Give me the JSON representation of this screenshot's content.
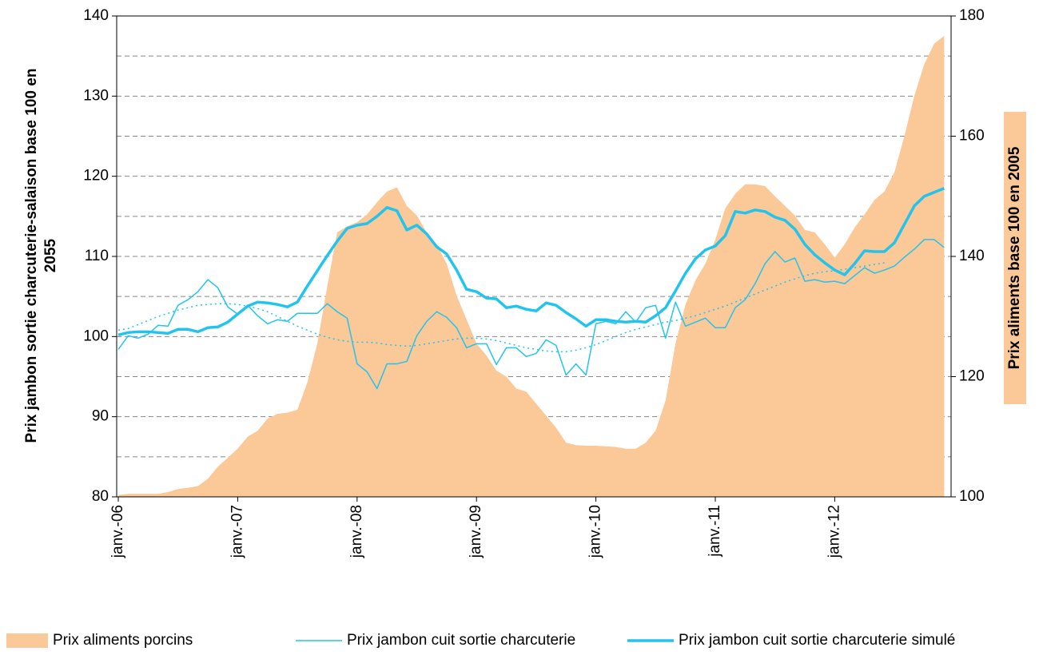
{
  "chart_data": {
    "type": "line",
    "ylabel": [
      "Prix jambon sortie charcuterie-salaison base 100 en",
      "2055"
    ],
    "y2label": "Prix aliments base 100 en 2005",
    "categories": [
      "janv.-06",
      null,
      null,
      null,
      null,
      null,
      null,
      null,
      null,
      null,
      null,
      null,
      "janv.-07",
      null,
      null,
      null,
      null,
      null,
      null,
      null,
      null,
      null,
      null,
      null,
      "janv.-08",
      null,
      null,
      null,
      null,
      null,
      null,
      null,
      null,
      null,
      null,
      null,
      "janv.-09",
      null,
      null,
      null,
      null,
      null,
      null,
      null,
      null,
      null,
      null,
      null,
      "janv.-10",
      null,
      null,
      null,
      null,
      null,
      null,
      null,
      null,
      null,
      null,
      null,
      "janv.-11",
      null,
      null,
      null,
      null,
      null,
      null,
      null,
      null,
      null,
      null,
      null,
      "janv.-12",
      null,
      null,
      null,
      null,
      null,
      null,
      null,
      null,
      null,
      null,
      null
    ],
    "ylim": [
      80,
      140
    ],
    "yticks": [
      80,
      90,
      100,
      110,
      120,
      130,
      140
    ],
    "yminor": [
      85,
      95,
      105,
      115,
      125,
      135
    ],
    "y2lim": [
      100,
      180
    ],
    "y2ticks": [
      100,
      120,
      140,
      160,
      180
    ],
    "grid": true,
    "series": [
      {
        "name": "Prix aliments porcins",
        "color": "#fbc898",
        "axis": "y2",
        "fill": true,
        "values": [
          100.3,
          100.5,
          100.5,
          100.5,
          100.5,
          100.8,
          101.3,
          101.5,
          101.8,
          103,
          105,
          106.5,
          108,
          110,
          111,
          113,
          113.8,
          114,
          114.5,
          119,
          125.5,
          135,
          144,
          145,
          145.7,
          147,
          149,
          150.8,
          151.5,
          148.4,
          146.8,
          144,
          142,
          138.8,
          133.5,
          129.5,
          125.5,
          123.5,
          121,
          120,
          118,
          117.5,
          115.5,
          113.5,
          111.5,
          109,
          108.6,
          108.5,
          108.5,
          108.4,
          108.3,
          108,
          108,
          109,
          111,
          116,
          125.5,
          132,
          136,
          138.8,
          142.8,
          148,
          150.4,
          152,
          152,
          151.7,
          150,
          148.4,
          146.8,
          144.4,
          144,
          142,
          139.8,
          142,
          144.8,
          147,
          149.4,
          150.8,
          154,
          160,
          166.7,
          172,
          175.4,
          176.7
        ]
      },
      {
        "name": "Prix jambon cuit sortie charcuterie",
        "color": "#22c4ee",
        "width": 1.5,
        "values": [
          98.4,
          100.1,
          99.8,
          100.3,
          101.4,
          101.3,
          103.9,
          104.6,
          105.6,
          107.1,
          106.1,
          103.7,
          102.8,
          103.9,
          102.6,
          101.6,
          102.1,
          101.9,
          102.9,
          102.9,
          102.9,
          104.1,
          103.1,
          102.3,
          96.6,
          95.6,
          93.5,
          96.6,
          96.6,
          96.9,
          100.1,
          101.9,
          103.1,
          102.4,
          101.1,
          98.6,
          99.1,
          99.1,
          96.5,
          98.6,
          98.6,
          97.5,
          97.9,
          99.6,
          98.9,
          95.2,
          96.6,
          95.2,
          101.6,
          101.9,
          101.6,
          103.1,
          101.8,
          103.6,
          103.9,
          99.8,
          104.3,
          101.3,
          101.8,
          102.3,
          101.1,
          101.1,
          103.6,
          104.6,
          106.6,
          109.1,
          110.6,
          109.3,
          109.8,
          106.9,
          107.1,
          106.8,
          106.9,
          106.6,
          107.6,
          108.6,
          107.9,
          108.3,
          108.8,
          109.9,
          110.9,
          112.1,
          112.1,
          111.1
        ]
      },
      {
        "name": "Prix jambon cuit sortie charcuterie simulé",
        "color": "#22c4ee",
        "width": 3.5,
        "values": [
          100.2,
          100.5,
          100.6,
          100.6,
          100.5,
          100.4,
          100.9,
          100.9,
          100.6,
          101.1,
          101.2,
          101.8,
          102.8,
          103.8,
          104.3,
          104.2,
          104.0,
          103.7,
          104.3,
          106.3,
          108.2,
          110.1,
          111.9,
          113.5,
          113.9,
          114.1,
          115.0,
          116.1,
          115.7,
          113.3,
          113.9,
          112.8,
          111.2,
          110.3,
          108.3,
          105.9,
          105.6,
          104.8,
          104.7,
          103.6,
          103.8,
          103.4,
          103.2,
          104.2,
          103.9,
          103.0,
          102.2,
          101.3,
          102.1,
          102.1,
          101.9,
          101.8,
          101.9,
          101.8,
          102.6,
          103.6,
          105.7,
          107.9,
          109.7,
          110.8,
          111.3,
          112.6,
          115.6,
          115.4,
          115.8,
          115.6,
          114.9,
          114.5,
          113.4,
          111.5,
          110.2,
          109.2,
          108.3,
          107.7,
          109.1,
          110.7,
          110.6,
          110.6,
          111.7,
          114.0,
          116.3,
          117.5,
          118.0,
          118.5
        ]
      },
      {
        "color": "#22c4ee",
        "width": 1.5,
        "dashed": true,
        "values": [
          100.8,
          101.0,
          101.5,
          102.0,
          102.5,
          102.9,
          103.3,
          103.6,
          103.9,
          104.0,
          104.1,
          104.1,
          104.0,
          103.8,
          103.5,
          103.1,
          102.5,
          101.9,
          101.3,
          100.8,
          100.3,
          99.9,
          99.6,
          99.4,
          99.3,
          99.3,
          99.2,
          99.0,
          98.9,
          98.8,
          98.9,
          99.1,
          99.3,
          99.5,
          99.7,
          99.8,
          99.8,
          99.7,
          99.5,
          99.2,
          98.9,
          98.6,
          98.4,
          98.2,
          98.1,
          98.1,
          98.3,
          98.6,
          99.0,
          99.5,
          100.0,
          100.5,
          100.9,
          101.2,
          101.5,
          101.8,
          102.0,
          102.3,
          102.6,
          103.0,
          103.4,
          103.8,
          104.3,
          104.8,
          105.3,
          105.8,
          106.3,
          106.8,
          107.2,
          107.6,
          107.9,
          108.1,
          108.2,
          108.4,
          108.6,
          108.8,
          109.0,
          109.2,
          null,
          null,
          null,
          null,
          null,
          null
        ]
      }
    ]
  }
}
